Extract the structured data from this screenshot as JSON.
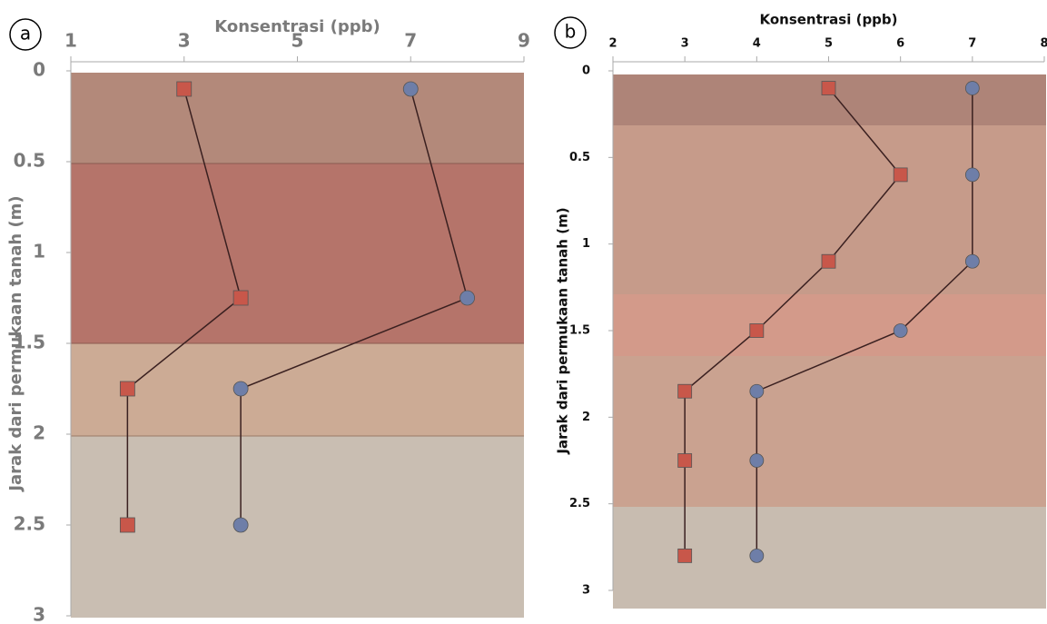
{
  "chart_data": [
    {
      "type": "scatter",
      "panel": "a",
      "x_label": "Konsentrasi (ppb)",
      "y_label": "Jarak dari permukaan tanah (m)",
      "xlim": [
        1,
        9
      ],
      "xticks": [
        1,
        3,
        5,
        7,
        9
      ],
      "ylim": [
        0,
        3
      ],
      "yticks": [
        0,
        0.5,
        1,
        1.5,
        2,
        2.5,
        3
      ],
      "y_inverted": true,
      "series": [
        {
          "color": "#c8574a",
          "marker": "square",
          "x": [
            3,
            4,
            2,
            2
          ],
          "values": [
            0.1,
            1.25,
            1.75,
            2.5
          ]
        },
        {
          "color": "#6e7ea8",
          "marker": "circle",
          "x": [
            7,
            8,
            4,
            4
          ],
          "values": [
            0.1,
            1.25,
            1.75,
            2.5
          ]
        }
      ]
    },
    {
      "type": "scatter",
      "panel": "b",
      "x_label": "Konsentrasi (ppb)",
      "y_label": "Jarak dari permukaan tanah (m)",
      "xlim": [
        2,
        8
      ],
      "xticks": [
        2,
        3,
        4,
        5,
        6,
        7,
        8
      ],
      "ylim": [
        0,
        3
      ],
      "yticks": [
        0,
        0.5,
        1,
        1.5,
        2,
        2.5,
        3
      ],
      "y_inverted": true,
      "series": [
        {
          "color": "#c8574a",
          "marker": "square",
          "x": [
            5,
            6,
            5,
            4,
            3,
            3,
            3
          ],
          "values": [
            0.1,
            0.6,
            1.1,
            1.5,
            1.85,
            2.25,
            2.8
          ]
        },
        {
          "color": "#6e7ea8",
          "marker": "circle",
          "x": [
            7,
            7,
            7,
            6,
            4,
            4,
            4
          ],
          "values": [
            0.1,
            0.6,
            1.1,
            1.5,
            1.85,
            2.25,
            2.8
          ]
        }
      ]
    }
  ]
}
